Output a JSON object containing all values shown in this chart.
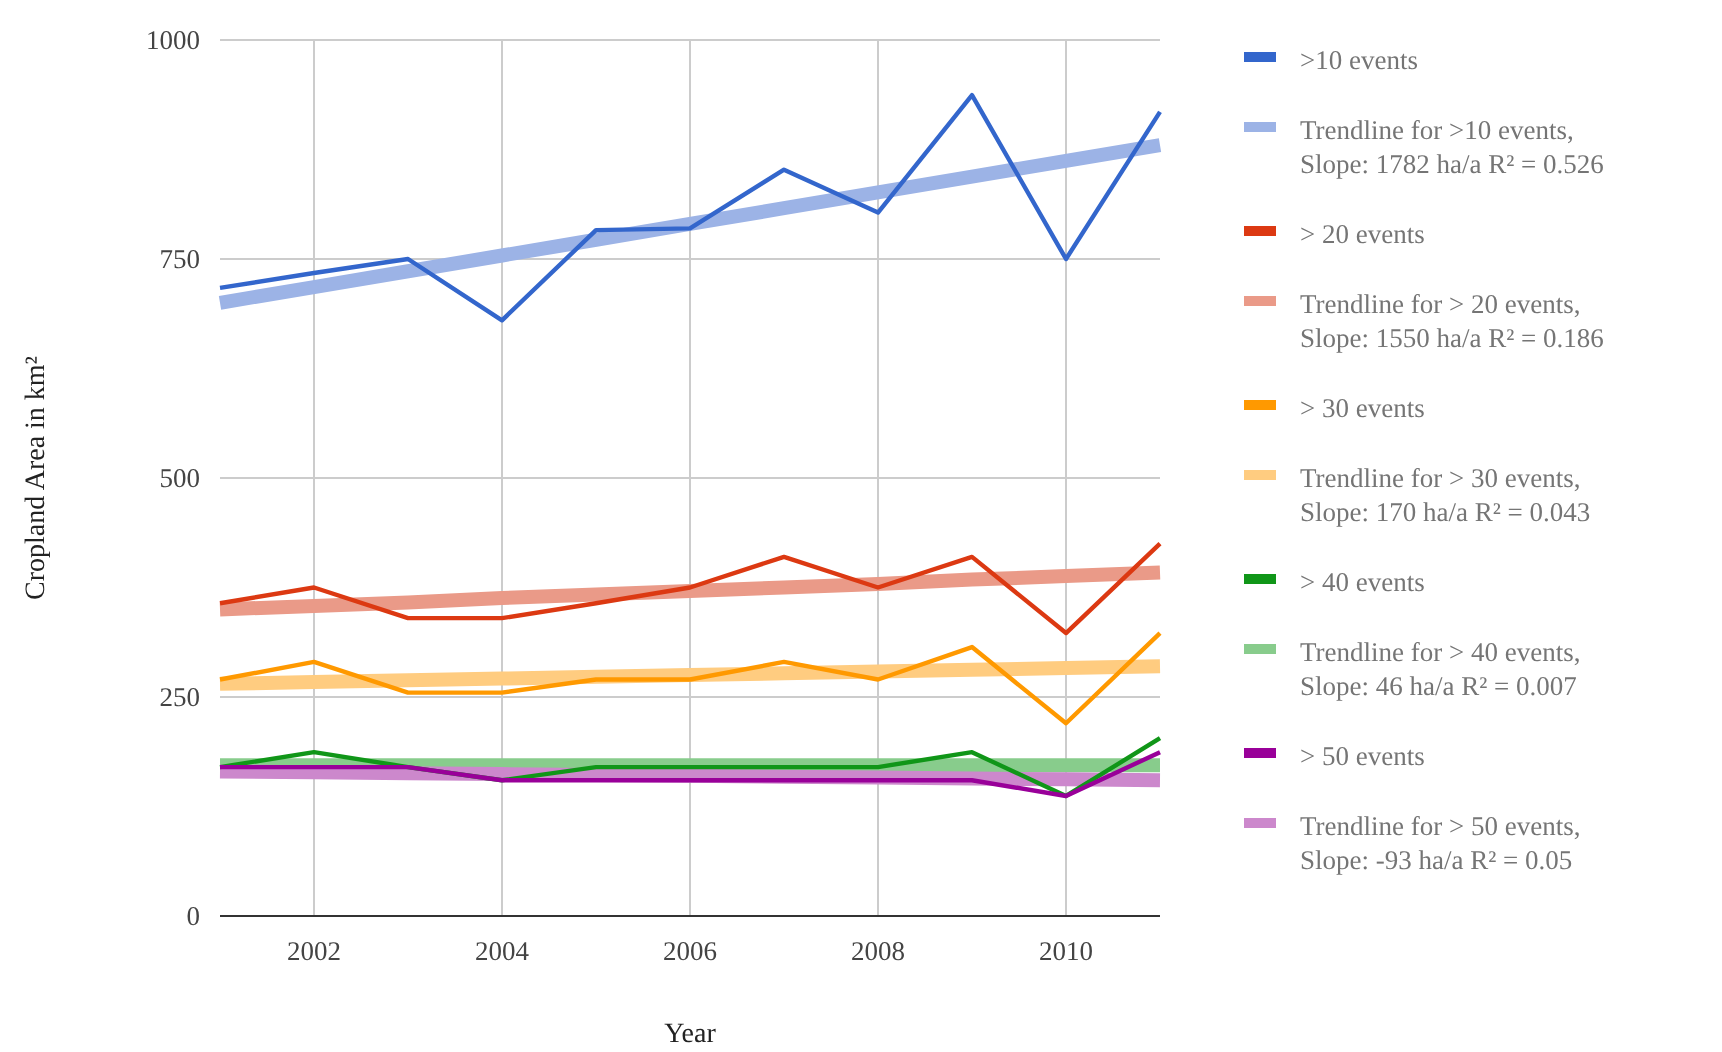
{
  "chart_data": {
    "type": "line",
    "xlabel": "Year",
    "ylabel": "Cropland Area in km²",
    "x": [
      2001,
      2002,
      2003,
      2004,
      2005,
      2006,
      2007,
      2008,
      2009,
      2010,
      2011
    ],
    "xlim": [
      2001,
      2011
    ],
    "xticks": [
      2002,
      2004,
      2006,
      2008,
      2010
    ],
    "ylim": [
      0,
      1000
    ],
    "yticks": [
      0,
      250,
      500,
      750,
      1000
    ],
    "grid": true,
    "legend": "right",
    "marker": "none",
    "line_style": "solid",
    "series": [
      {
        "name": ">10 events",
        "color": "#3366cc",
        "values": [
          717,
          734,
          750,
          680,
          783,
          785,
          852,
          803,
          937,
          750,
          918
        ]
      },
      {
        "name": "Trendline for >10 events, Slope: 1782 ha/a R² = 0.526",
        "color": "#9cb3e6",
        "values": [
          700,
          718,
          736,
          754,
          772,
          790,
          808,
          826,
          844,
          862,
          880
        ]
      },
      {
        "name": "> 20 events",
        "color": "#dc3912",
        "values": [
          357,
          375,
          340,
          340,
          357,
          375,
          410,
          375,
          410,
          323,
          425
        ]
      },
      {
        "name": "Trendline for > 20 events, Slope: 1550 ha/a R² = 0.186",
        "color": "#ea9a88",
        "values": [
          350,
          354,
          358,
          363,
          367,
          371,
          375,
          379,
          384,
          388,
          392
        ]
      },
      {
        "name": "> 30 events",
        "color": "#ff9900",
        "values": [
          270,
          290,
          255,
          255,
          270,
          270,
          290,
          270,
          307,
          220,
          323
        ]
      },
      {
        "name": "Trendline for > 30 events, Slope: 170 ha/a R² = 0.043",
        "color": "#ffcc80",
        "values": [
          265,
          267,
          269,
          271,
          273,
          275,
          277,
          279,
          281,
          283,
          285
        ]
      },
      {
        "name": "> 40 events",
        "color": "#109618",
        "values": [
          170,
          187,
          170,
          155,
          170,
          170,
          170,
          170,
          187,
          137,
          203
        ]
      },
      {
        "name": "Trendline for > 40 events, Slope: 46 ha/a R² = 0.007",
        "color": "#88cc8c",
        "values": [
          172,
          172,
          172,
          172,
          172,
          172,
          172,
          172,
          172,
          172,
          172
        ]
      },
      {
        "name": "> 50 events",
        "color": "#990099",
        "values": [
          170,
          170,
          170,
          155,
          155,
          155,
          155,
          155,
          155,
          137,
          187
        ]
      },
      {
        "name": "Trendline for > 50 events, Slope: -93 ha/a R² = 0.05",
        "color": "#cc88cc",
        "values": [
          165,
          164,
          163,
          162,
          161,
          160,
          159,
          158,
          157,
          156,
          155
        ]
      }
    ]
  }
}
